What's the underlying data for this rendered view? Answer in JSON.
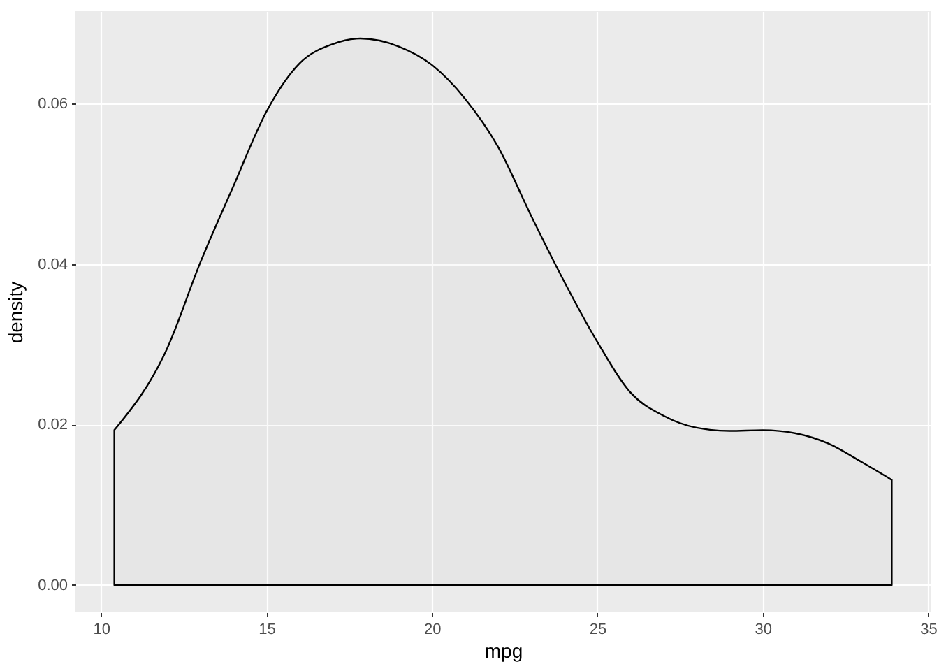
{
  "chart_data": {
    "type": "area",
    "xlabel": "mpg",
    "ylabel": "density",
    "x": [
      10.4,
      12,
      13,
      14,
      15,
      16,
      17,
      17.83,
      19,
      20,
      21,
      22,
      23,
      24,
      25,
      26,
      27,
      28,
      29,
      30,
      31,
      32,
      33,
      33.9
    ],
    "series": [
      {
        "color": "#000000",
        "values": [
          0.0193,
          0.0295,
          0.0402,
          0.0497,
          0.059,
          0.065,
          0.0674,
          0.0681,
          0.0671,
          0.0648,
          0.0606,
          0.0546,
          0.046,
          0.0378,
          0.0303,
          0.024,
          0.0211,
          0.0196,
          0.0192,
          0.0193,
          0.0189,
          0.0176,
          0.0153,
          0.0131
        ]
      }
    ],
    "xlim": [
      9.225,
      35.075
    ],
    "ylim": [
      -0.0034,
      0.0715
    ],
    "xticks": [
      10,
      15,
      20,
      25,
      30,
      35
    ],
    "yticks": [
      {
        "value": 0,
        "label": "0.00"
      },
      {
        "value": 0.02,
        "label": "0.02"
      },
      {
        "value": 0.04,
        "label": "0.04"
      },
      {
        "value": 0.06,
        "label": "0.06"
      }
    ],
    "grid": true,
    "line_style": "solid"
  }
}
